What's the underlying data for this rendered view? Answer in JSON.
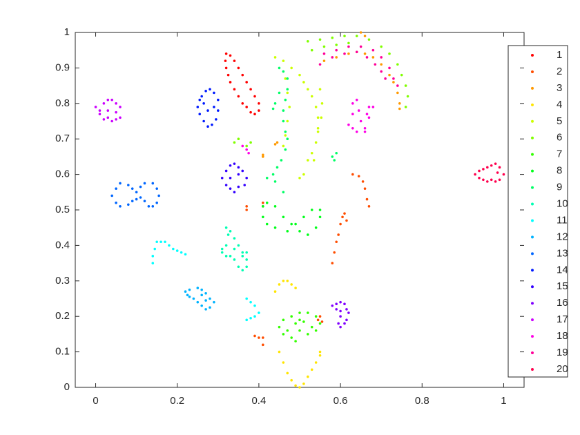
{
  "chart_data": {
    "type": "scatter",
    "xlim": [
      -0.05,
      1.05
    ],
    "ylim": [
      0,
      1
    ],
    "xticks": [
      0,
      0.2,
      0.4,
      0.6,
      0.8,
      1
    ],
    "yticks": [
      0,
      0.1,
      0.2,
      0.3,
      0.4,
      0.5,
      0.6,
      0.7,
      0.8,
      0.9,
      1
    ],
    "grid": false,
    "series": [
      {
        "name": "1",
        "color": "#ff0000",
        "x": [
          0.32,
          0.33,
          0.34,
          0.35,
          0.36,
          0.37,
          0.38,
          0.39,
          0.4,
          0.4,
          0.39,
          0.38,
          0.37,
          0.36,
          0.35,
          0.34,
          0.33,
          0.325,
          0.32,
          0.318
        ],
        "y": [
          0.94,
          0.935,
          0.92,
          0.9,
          0.88,
          0.86,
          0.84,
          0.82,
          0.8,
          0.78,
          0.77,
          0.775,
          0.79,
          0.8,
          0.82,
          0.84,
          0.86,
          0.88,
          0.9,
          0.92
        ]
      },
      {
        "name": "2",
        "color": "#ff4d00",
        "x": [
          0.37,
          0.37,
          0.41,
          0.41,
          0.58,
          0.585,
          0.59,
          0.595,
          0.6,
          0.605,
          0.61,
          0.615,
          0.63,
          0.645,
          0.655,
          0.66,
          0.665,
          0.67,
          0.39,
          0.4,
          0.41,
          0.41,
          0.545,
          0.55,
          0.555
        ],
        "y": [
          0.5,
          0.51,
          0.51,
          0.52,
          0.35,
          0.38,
          0.41,
          0.43,
          0.46,
          0.48,
          0.49,
          0.47,
          0.6,
          0.595,
          0.58,
          0.56,
          0.53,
          0.51,
          0.145,
          0.14,
          0.12,
          0.14,
          0.19,
          0.2,
          0.185
        ]
      },
      {
        "name": "3",
        "color": "#ff9900",
        "x": [
          0.56,
          0.59,
          0.62,
          0.64,
          0.66,
          0.68,
          0.7,
          0.72,
          0.73,
          0.74,
          0.745,
          0.745,
          0.65,
          0.66,
          0.41,
          0.41,
          0.44,
          0.445
        ],
        "y": [
          0.92,
          0.93,
          0.94,
          0.945,
          0.94,
          0.93,
          0.91,
          0.88,
          0.86,
          0.83,
          0.8,
          0.785,
          1.0,
          0.99,
          0.655,
          0.65,
          0.685,
          0.69
        ]
      },
      {
        "name": "4",
        "color": "#ffe500",
        "x": [
          0.45,
          0.46,
          0.47,
          0.48,
          0.49,
          0.5,
          0.51,
          0.52,
          0.53,
          0.54,
          0.55,
          0.55,
          0.44,
          0.45,
          0.46,
          0.47,
          0.48,
          0.49
        ],
        "y": [
          0.1,
          0.07,
          0.04,
          0.02,
          0.005,
          0.0,
          0.01,
          0.03,
          0.05,
          0.07,
          0.09,
          0.1,
          0.27,
          0.29,
          0.3,
          0.3,
          0.29,
          0.28
        ]
      },
      {
        "name": "5",
        "color": "#ccff00",
        "x": [
          0.44,
          0.46,
          0.48,
          0.5,
          0.51,
          0.52,
          0.53,
          0.54,
          0.545,
          0.545,
          0.54,
          0.53,
          0.465,
          0.47,
          0.475,
          0.47,
          0.465,
          0.46,
          0.55,
          0.555,
          0.553,
          0.545,
          0.535,
          0.52,
          0.51,
          0.5
        ],
        "y": [
          0.93,
          0.92,
          0.9,
          0.88,
          0.86,
          0.84,
          0.82,
          0.79,
          0.76,
          0.72,
          0.69,
          0.66,
          0.87,
          0.83,
          0.79,
          0.75,
          0.71,
          0.68,
          0.84,
          0.8,
          0.76,
          0.73,
          0.64,
          0.64,
          0.6,
          0.59
        ]
      },
      {
        "name": "6",
        "color": "#80ff00",
        "x": [
          0.52,
          0.55,
          0.58,
          0.61,
          0.64,
          0.67,
          0.7,
          0.72,
          0.74,
          0.75,
          0.76,
          0.765,
          0.76,
          0.53,
          0.56,
          0.59,
          0.62,
          0.34,
          0.35,
          0.37,
          0.38
        ],
        "y": [
          0.975,
          0.98,
          0.985,
          0.99,
          0.99,
          0.98,
          0.96,
          0.94,
          0.91,
          0.88,
          0.85,
          0.82,
          0.79,
          0.95,
          0.96,
          0.965,
          0.97,
          0.69,
          0.7,
          0.68,
          0.69
        ]
      },
      {
        "name": "7",
        "color": "#33ff00",
        "x": [
          0.45,
          0.46,
          0.48,
          0.5,
          0.52,
          0.54,
          0.55,
          0.54,
          0.52,
          0.5,
          0.48,
          0.49,
          0.47,
          0.49,
          0.5,
          0.46,
          0.51,
          0.53
        ],
        "y": [
          0.17,
          0.19,
          0.2,
          0.21,
          0.21,
          0.2,
          0.18,
          0.16,
          0.15,
          0.16,
          0.14,
          0.13,
          0.16,
          0.18,
          0.19,
          0.15,
          0.185,
          0.17
        ]
      },
      {
        "name": "8",
        "color": "#00ff1a",
        "x": [
          0.41,
          0.42,
          0.44,
          0.46,
          0.48,
          0.5,
          0.52,
          0.54,
          0.55,
          0.55,
          0.53,
          0.51,
          0.49,
          0.47,
          0.44,
          0.42,
          0.41
        ],
        "y": [
          0.51,
          0.52,
          0.51,
          0.48,
          0.46,
          0.44,
          0.43,
          0.45,
          0.48,
          0.5,
          0.5,
          0.48,
          0.46,
          0.44,
          0.45,
          0.46,
          0.48
        ]
      },
      {
        "name": "9",
        "color": "#00ff66",
        "x": [
          0.45,
          0.46,
          0.47,
          0.47,
          0.465,
          0.46,
          0.46,
          0.465,
          0.47,
          0.465,
          0.455,
          0.445,
          0.435,
          0.42,
          0.44,
          0.46,
          0.58,
          0.585,
          0.59,
          0.435,
          0.44,
          0.45
        ],
        "y": [
          0.9,
          0.89,
          0.87,
          0.84,
          0.81,
          0.78,
          0.75,
          0.72,
          0.7,
          0.67,
          0.64,
          0.62,
          0.6,
          0.59,
          0.58,
          0.55,
          0.65,
          0.64,
          0.66,
          0.785,
          0.8,
          0.83
        ]
      },
      {
        "name": "10",
        "color": "#00ffb3",
        "x": [
          0.32,
          0.33,
          0.34,
          0.35,
          0.36,
          0.37,
          0.37,
          0.36,
          0.35,
          0.34,
          0.33,
          0.32,
          0.31,
          0.31,
          0.32,
          0.34,
          0.36,
          0.37,
          0.325
        ],
        "y": [
          0.45,
          0.44,
          0.42,
          0.4,
          0.38,
          0.36,
          0.34,
          0.33,
          0.34,
          0.36,
          0.37,
          0.37,
          0.38,
          0.39,
          0.4,
          0.39,
          0.37,
          0.38,
          0.43
        ]
      },
      {
        "name": "11",
        "color": "#00ffff",
        "x": [
          0.14,
          0.14,
          0.145,
          0.15,
          0.16,
          0.17,
          0.18,
          0.19,
          0.2,
          0.21,
          0.22,
          0.37,
          0.38,
          0.39,
          0.4,
          0.39,
          0.38,
          0.37
        ],
        "y": [
          0.35,
          0.37,
          0.39,
          0.41,
          0.41,
          0.41,
          0.4,
          0.39,
          0.385,
          0.38,
          0.375,
          0.25,
          0.24,
          0.23,
          0.21,
          0.2,
          0.195,
          0.19
        ]
      },
      {
        "name": "12",
        "color": "#00b3ff",
        "x": [
          0.22,
          0.23,
          0.25,
          0.26,
          0.27,
          0.28,
          0.29,
          0.28,
          0.27,
          0.26,
          0.25,
          0.24,
          0.23,
          0.225,
          0.26,
          0.27
        ],
        "y": [
          0.27,
          0.275,
          0.28,
          0.275,
          0.265,
          0.25,
          0.24,
          0.225,
          0.22,
          0.23,
          0.24,
          0.25,
          0.255,
          0.26,
          0.26,
          0.245
        ]
      },
      {
        "name": "13",
        "color": "#0066ff",
        "x": [
          0.04,
          0.05,
          0.06,
          0.08,
          0.09,
          0.1,
          0.11,
          0.12,
          0.14,
          0.15,
          0.155,
          0.15,
          0.14,
          0.13,
          0.12,
          0.11,
          0.1,
          0.09,
          0.08,
          0.06,
          0.05
        ],
        "y": [
          0.54,
          0.56,
          0.575,
          0.57,
          0.56,
          0.55,
          0.565,
          0.575,
          0.575,
          0.56,
          0.54,
          0.52,
          0.51,
          0.51,
          0.525,
          0.535,
          0.53,
          0.525,
          0.515,
          0.51,
          0.52
        ]
      },
      {
        "name": "14",
        "color": "#001aff",
        "x": [
          0.26,
          0.27,
          0.28,
          0.29,
          0.3,
          0.3,
          0.295,
          0.285,
          0.275,
          0.265,
          0.255,
          0.25,
          0.255,
          0.265,
          0.275,
          0.29
        ],
        "y": [
          0.82,
          0.835,
          0.84,
          0.83,
          0.81,
          0.78,
          0.755,
          0.74,
          0.735,
          0.75,
          0.77,
          0.79,
          0.81,
          0.8,
          0.78,
          0.79
        ]
      },
      {
        "name": "15",
        "color": "#3300ff",
        "x": [
          0.32,
          0.33,
          0.34,
          0.35,
          0.36,
          0.37,
          0.365,
          0.35,
          0.34,
          0.33,
          0.32,
          0.31,
          0.33,
          0.35
        ],
        "y": [
          0.61,
          0.625,
          0.63,
          0.62,
          0.61,
          0.59,
          0.57,
          0.565,
          0.55,
          0.56,
          0.57,
          0.59,
          0.59,
          0.6
        ]
      },
      {
        "name": "16",
        "color": "#8000ff",
        "x": [
          0.58,
          0.59,
          0.6,
          0.61,
          0.615,
          0.62,
          0.615,
          0.61,
          0.6,
          0.595,
          0.6,
          0.6,
          0.59
        ],
        "y": [
          0.23,
          0.235,
          0.24,
          0.235,
          0.22,
          0.21,
          0.19,
          0.18,
          0.17,
          0.18,
          0.2,
          0.215,
          0.22
        ]
      },
      {
        "name": "17",
        "color": "#cc00ff",
        "x": [
          0.0,
          0.01,
          0.02,
          0.03,
          0.04,
          0.05,
          0.06,
          0.06,
          0.05,
          0.04,
          0.03,
          0.02,
          0.01,
          0.03,
          0.05
        ],
        "y": [
          0.79,
          0.77,
          0.8,
          0.81,
          0.81,
          0.8,
          0.79,
          0.76,
          0.755,
          0.75,
          0.76,
          0.755,
          0.78,
          0.78,
          0.775
        ]
      },
      {
        "name": "18",
        "color": "#ff00e6",
        "x": [
          0.62,
          0.63,
          0.63,
          0.64,
          0.645,
          0.65,
          0.66,
          0.67,
          0.68,
          0.67,
          0.665,
          0.66,
          0.64,
          0.63,
          0.36,
          0.37,
          0.375
        ],
        "y": [
          0.74,
          0.77,
          0.8,
          0.81,
          0.78,
          0.75,
          0.73,
          0.76,
          0.79,
          0.79,
          0.77,
          0.72,
          0.72,
          0.73,
          0.68,
          0.67,
          0.66
        ]
      },
      {
        "name": "19",
        "color": "#ff0099",
        "x": [
          0.56,
          0.59,
          0.62,
          0.65,
          0.68,
          0.7,
          0.72,
          0.73,
          0.74,
          0.55,
          0.58,
          0.61,
          0.64,
          0.665,
          0.685,
          0.7,
          0.71
        ],
        "y": [
          0.94,
          0.95,
          0.96,
          0.96,
          0.95,
          0.93,
          0.9,
          0.87,
          0.85,
          0.91,
          0.93,
          0.94,
          0.945,
          0.93,
          0.91,
          0.89,
          0.87
        ]
      },
      {
        "name": "20",
        "color": "#ff004d",
        "x": [
          0.93,
          0.94,
          0.95,
          0.96,
          0.97,
          0.98,
          0.99,
          1.0,
          0.99,
          0.98,
          0.97,
          0.96,
          0.95,
          0.94,
          0.985
        ],
        "y": [
          0.6,
          0.61,
          0.615,
          0.62,
          0.625,
          0.63,
          0.62,
          0.6,
          0.585,
          0.58,
          0.585,
          0.58,
          0.585,
          0.59,
          0.605
        ]
      }
    ]
  }
}
